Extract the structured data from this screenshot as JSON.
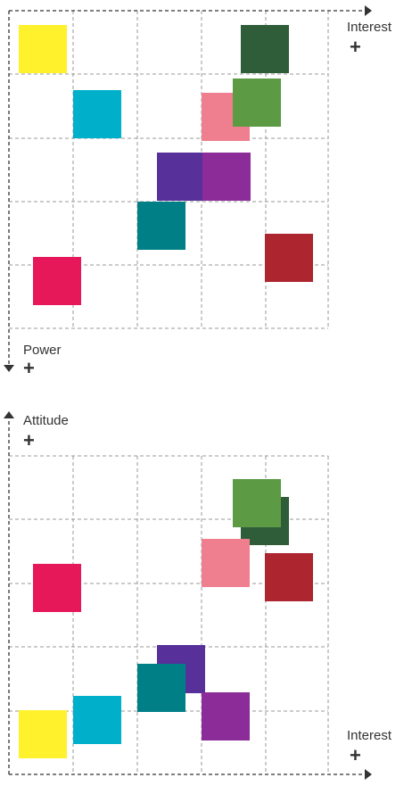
{
  "colors": {
    "yellow": "#fff22d",
    "cyan": "#00afca",
    "dark-green": "#2f5d3a",
    "light-green": "#5c9a44",
    "pink": "#ef7f8f",
    "indigo": "#57309a",
    "purple": "#8b2c98",
    "teal": "#007f86",
    "dark-red": "#ad262f",
    "magenta": "#e6185a",
    "grid_line": "#9a9a9a",
    "axis": "#333333"
  },
  "top_matrix": {
    "x_label": "Interest",
    "x_plus": "+",
    "y_label": "Power",
    "y_plus": "+"
  },
  "bottom_matrix": {
    "y_label": "Attitude",
    "y_plus": "+",
    "x_label": "Interest",
    "x_plus": "+"
  }
}
